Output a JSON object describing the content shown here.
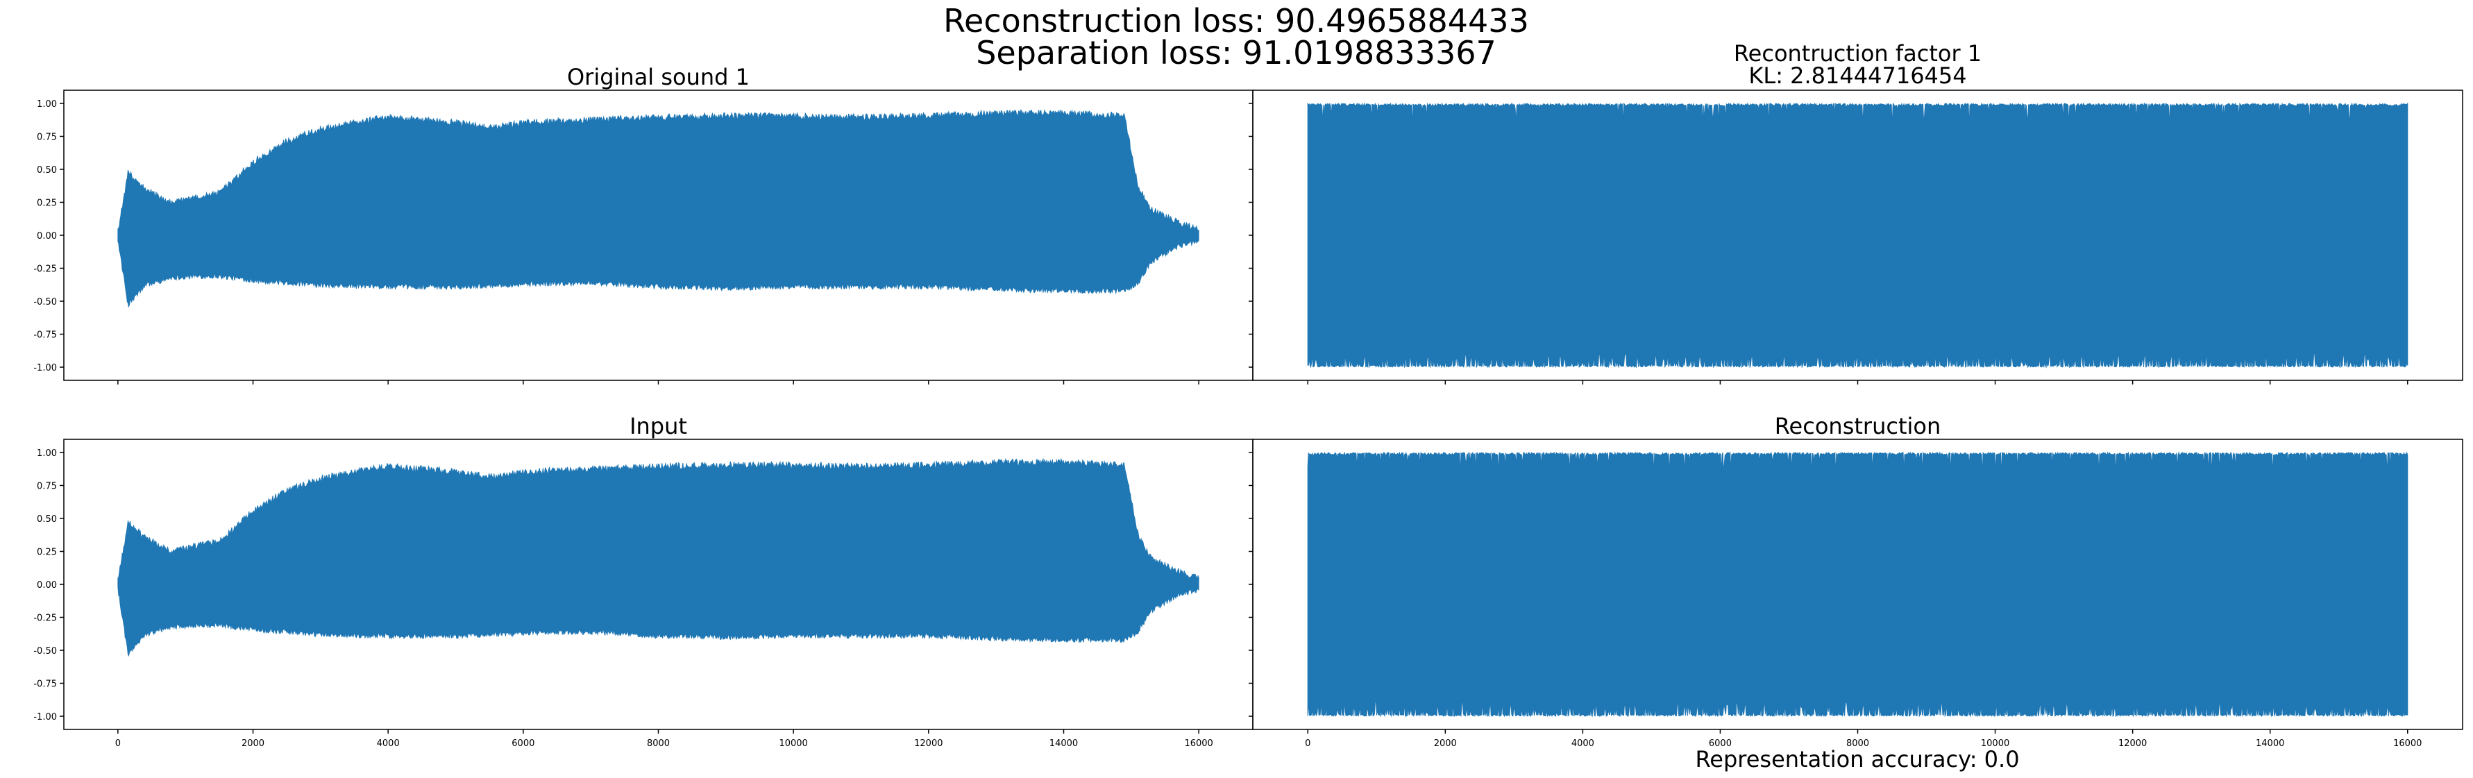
{
  "figure": {
    "title_lines": [
      "Reconstruction loss: 90.4965884433",
      "Separation loss: 91.0198833367"
    ],
    "footer": "Representation accuracy: 0.0"
  },
  "chart_data": [
    {
      "type": "line",
      "id": "original",
      "title_lines": [
        "Original sound 1"
      ],
      "color": "#1f77b4",
      "xlim": [
        -800,
        16800
      ],
      "ylim": [
        -1.1,
        1.1
      ],
      "x_ticks": [
        0,
        2000,
        4000,
        6000,
        8000,
        10000,
        12000,
        14000,
        16000
      ],
      "x_tick_labels": [],
      "y_ticks": [
        -1.0,
        -0.75,
        -0.5,
        -0.25,
        0.0,
        0.25,
        0.5,
        0.75,
        1.0
      ],
      "y_tick_labels": [
        "-1.00",
        "-0.75",
        "-0.50",
        "-0.25",
        "0.00",
        "0.25",
        "0.50",
        "0.75",
        "1.00"
      ],
      "upper_envelope": [
        [
          0,
          0.05
        ],
        [
          150,
          0.5
        ],
        [
          400,
          0.38
        ],
        [
          800,
          0.27
        ],
        [
          1200,
          0.32
        ],
        [
          1500,
          0.35
        ],
        [
          2000,
          0.58
        ],
        [
          2500,
          0.74
        ],
        [
          3000,
          0.83
        ],
        [
          3500,
          0.88
        ],
        [
          4000,
          0.92
        ],
        [
          5000,
          0.88
        ],
        [
          5500,
          0.84
        ],
        [
          6000,
          0.88
        ],
        [
          7000,
          0.9
        ],
        [
          8000,
          0.92
        ],
        [
          9000,
          0.93
        ],
        [
          10000,
          0.93
        ],
        [
          11000,
          0.92
        ],
        [
          12000,
          0.93
        ],
        [
          13000,
          0.95
        ],
        [
          14000,
          0.95
        ],
        [
          14900,
          0.93
        ],
        [
          15100,
          0.4
        ],
        [
          15300,
          0.22
        ],
        [
          15700,
          0.12
        ],
        [
          16000,
          0.07
        ]
      ],
      "lower_envelope": [
        [
          0,
          -0.05
        ],
        [
          150,
          -0.55
        ],
        [
          400,
          -0.4
        ],
        [
          800,
          -0.34
        ],
        [
          1200,
          -0.33
        ],
        [
          1500,
          -0.33
        ],
        [
          2000,
          -0.36
        ],
        [
          3000,
          -0.4
        ],
        [
          4000,
          -0.41
        ],
        [
          5000,
          -0.41
        ],
        [
          6000,
          -0.39
        ],
        [
          7000,
          -0.38
        ],
        [
          8000,
          -0.41
        ],
        [
          9000,
          -0.42
        ],
        [
          10000,
          -0.41
        ],
        [
          11000,
          -0.41
        ],
        [
          12000,
          -0.41
        ],
        [
          13000,
          -0.43
        ],
        [
          14000,
          -0.44
        ],
        [
          14900,
          -0.44
        ],
        [
          15100,
          -0.38
        ],
        [
          15300,
          -0.22
        ],
        [
          15700,
          -0.1
        ],
        [
          16000,
          -0.06
        ]
      ]
    },
    {
      "type": "line",
      "id": "factor",
      "title_lines": [
        "Recontruction factor 1",
        "KL: 2.81444716454"
      ],
      "color": "#1f77b4",
      "xlim": [
        -800,
        16800
      ],
      "ylim": [
        -1.1,
        1.1
      ],
      "x_ticks": [
        0,
        2000,
        4000,
        6000,
        8000,
        10000,
        12000,
        14000,
        16000
      ],
      "x_tick_labels": [],
      "y_ticks": [
        -1.0,
        -0.75,
        -0.5,
        -0.25,
        0.0,
        0.25,
        0.5,
        0.75,
        1.0
      ],
      "y_tick_labels": [],
      "upper_envelope": [
        [
          0,
          1.0
        ],
        [
          16000,
          1.0
        ]
      ],
      "lower_envelope": [
        [
          0,
          -1.0
        ],
        [
          16000,
          -1.0
        ]
      ]
    },
    {
      "type": "line",
      "id": "input",
      "title_lines": [
        "Input"
      ],
      "color": "#1f77b4",
      "xlim": [
        -800,
        16800
      ],
      "ylim": [
        -1.1,
        1.1
      ],
      "x_ticks": [
        0,
        2000,
        4000,
        6000,
        8000,
        10000,
        12000,
        14000,
        16000
      ],
      "x_tick_labels": [
        "0",
        "2000",
        "4000",
        "6000",
        "8000",
        "10000",
        "12000",
        "14000",
        "16000"
      ],
      "y_ticks": [
        -1.0,
        -0.75,
        -0.5,
        -0.25,
        0.0,
        0.25,
        0.5,
        0.75,
        1.0
      ],
      "y_tick_labels": [
        "-1.00",
        "-0.75",
        "-0.50",
        "-0.25",
        "0.00",
        "0.25",
        "0.50",
        "0.75",
        "1.00"
      ],
      "upper_envelope": [
        [
          0,
          0.05
        ],
        [
          150,
          0.5
        ],
        [
          400,
          0.38
        ],
        [
          800,
          0.27
        ],
        [
          1200,
          0.32
        ],
        [
          1500,
          0.35
        ],
        [
          2000,
          0.58
        ],
        [
          2500,
          0.74
        ],
        [
          3000,
          0.83
        ],
        [
          3500,
          0.88
        ],
        [
          4000,
          0.92
        ],
        [
          5000,
          0.88
        ],
        [
          5500,
          0.84
        ],
        [
          6000,
          0.88
        ],
        [
          7000,
          0.9
        ],
        [
          8000,
          0.92
        ],
        [
          9000,
          0.93
        ],
        [
          10000,
          0.93
        ],
        [
          11000,
          0.92
        ],
        [
          12000,
          0.93
        ],
        [
          13000,
          0.95
        ],
        [
          14000,
          0.95
        ],
        [
          14900,
          0.93
        ],
        [
          15100,
          0.4
        ],
        [
          15300,
          0.22
        ],
        [
          15700,
          0.12
        ],
        [
          16000,
          0.07
        ]
      ],
      "lower_envelope": [
        [
          0,
          -0.05
        ],
        [
          150,
          -0.55
        ],
        [
          400,
          -0.4
        ],
        [
          800,
          -0.34
        ],
        [
          1200,
          -0.33
        ],
        [
          1500,
          -0.33
        ],
        [
          2000,
          -0.36
        ],
        [
          3000,
          -0.4
        ],
        [
          4000,
          -0.41
        ],
        [
          5000,
          -0.41
        ],
        [
          6000,
          -0.39
        ],
        [
          7000,
          -0.38
        ],
        [
          8000,
          -0.41
        ],
        [
          9000,
          -0.42
        ],
        [
          10000,
          -0.41
        ],
        [
          11000,
          -0.41
        ],
        [
          12000,
          -0.41
        ],
        [
          13000,
          -0.43
        ],
        [
          14000,
          -0.44
        ],
        [
          14900,
          -0.44
        ],
        [
          15100,
          -0.38
        ],
        [
          15300,
          -0.22
        ],
        [
          15700,
          -0.1
        ],
        [
          16000,
          -0.06
        ]
      ]
    },
    {
      "type": "line",
      "id": "recon",
      "title_lines": [
        "Reconstruction"
      ],
      "color": "#1f77b4",
      "xlim": [
        -800,
        16800
      ],
      "ylim": [
        -1.1,
        1.1
      ],
      "x_ticks": [
        0,
        2000,
        4000,
        6000,
        8000,
        10000,
        12000,
        14000,
        16000
      ],
      "x_tick_labels": [
        "0",
        "2000",
        "4000",
        "6000",
        "8000",
        "10000",
        "12000",
        "14000",
        "16000"
      ],
      "y_ticks": [
        -1.0,
        -0.75,
        -0.5,
        -0.25,
        0.0,
        0.25,
        0.5,
        0.75,
        1.0
      ],
      "y_tick_labels": [],
      "upper_envelope": [
        [
          0,
          1.0
        ],
        [
          16000,
          1.0
        ]
      ],
      "lower_envelope": [
        [
          0,
          -1.0
        ],
        [
          16000,
          -1.0
        ]
      ]
    }
  ]
}
